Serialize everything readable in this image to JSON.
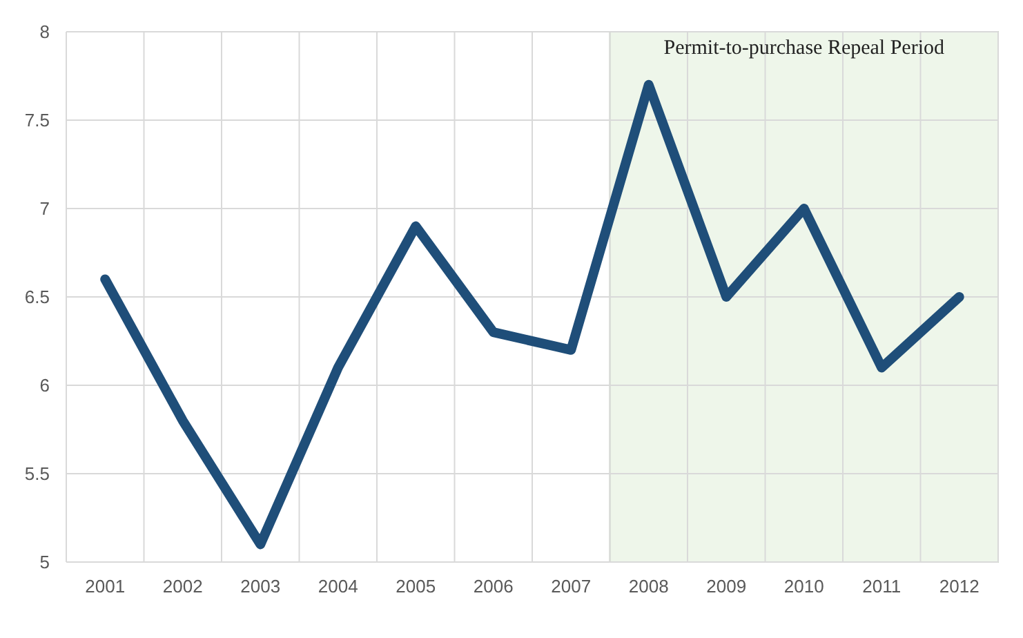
{
  "chart_data": {
    "type": "line",
    "categories": [
      "2001",
      "2002",
      "2003",
      "2004",
      "2005",
      "2006",
      "2007",
      "2008",
      "2009",
      "2010",
      "2011",
      "2012"
    ],
    "series": [
      {
        "color": "#1f4e79",
        "values": [
          6.6,
          5.8,
          5.1,
          6.1,
          6.9,
          6.3,
          6.2,
          7.7,
          6.5,
          7.0,
          6.1,
          6.5
        ]
      }
    ],
    "ylim": [
      5,
      8
    ],
    "yticks": [
      5,
      5.5,
      6,
      6.5,
      7,
      7.5,
      8
    ],
    "grid": true,
    "marker": "none",
    "line_style": "solid",
    "bands": [
      {
        "axis": "x",
        "from": "2008",
        "to": "2012",
        "label": "Permit-to-purchase Repeal Period",
        "color": "#eef6ea"
      }
    ]
  }
}
